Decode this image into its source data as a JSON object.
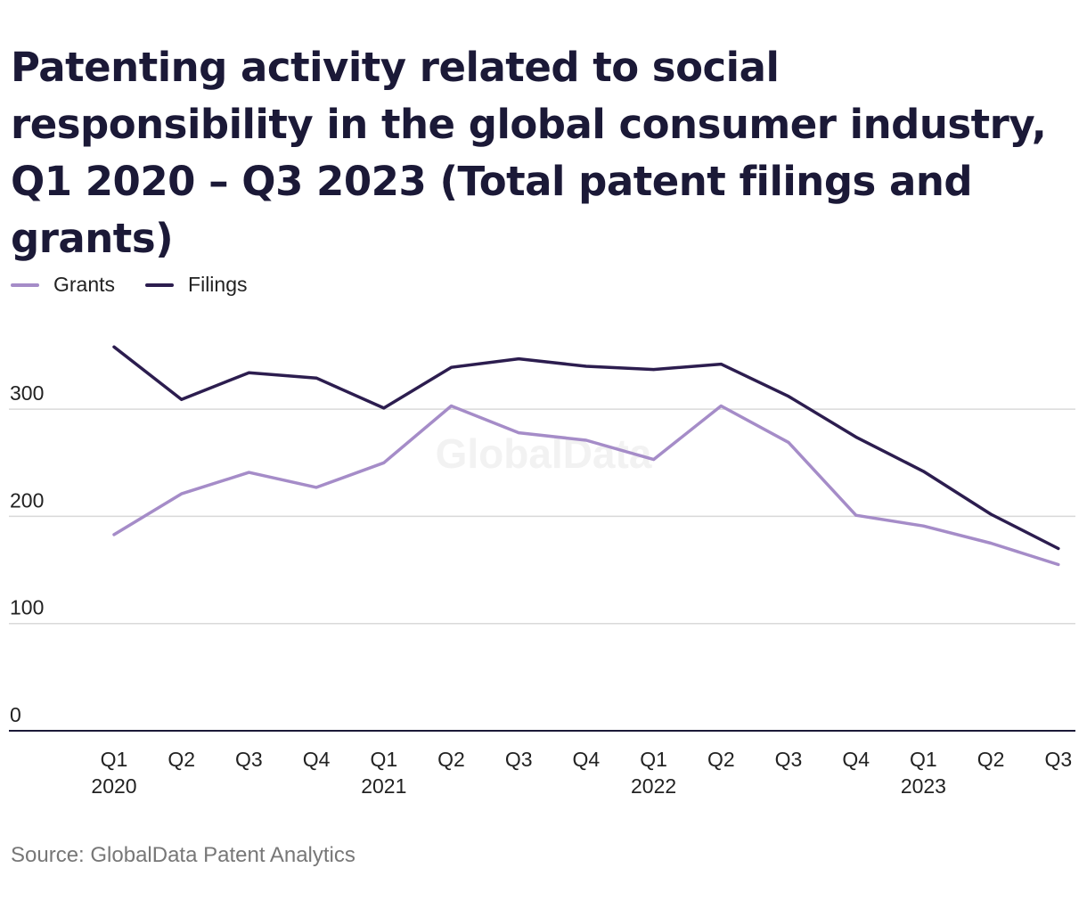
{
  "title": "Patenting activity related to social responsibility in the global consumer industry, Q1 2020 – Q3 2023 (Total patent filings and grants)",
  "source": "Source: GlobalData Patent Analytics",
  "watermark": "GlobalData",
  "chart_data": {
    "type": "line",
    "title": "Patenting activity related to social responsibility in the global consumer industry, Q1 2020 – Q3 2023 (Total patent filings and grants)",
    "categories": [
      "Q1 2020",
      "Q2",
      "Q3",
      "Q4",
      "Q1 2021",
      "Q2",
      "Q3",
      "Q4",
      "Q1 2022",
      "Q2",
      "Q3",
      "Q4",
      "Q1 2023",
      "Q2",
      "Q3"
    ],
    "x_ticks": [
      {
        "q": "Q1",
        "year": "2020"
      },
      {
        "q": "Q2",
        "year": ""
      },
      {
        "q": "Q3",
        "year": ""
      },
      {
        "q": "Q4",
        "year": ""
      },
      {
        "q": "Q1",
        "year": "2021"
      },
      {
        "q": "Q2",
        "year": ""
      },
      {
        "q": "Q3",
        "year": ""
      },
      {
        "q": "Q4",
        "year": ""
      },
      {
        "q": "Q1",
        "year": "2022"
      },
      {
        "q": "Q2",
        "year": ""
      },
      {
        "q": "Q3",
        "year": ""
      },
      {
        "q": "Q4",
        "year": ""
      },
      {
        "q": "Q1",
        "year": "2023"
      },
      {
        "q": "Q2",
        "year": ""
      },
      {
        "q": "Q3",
        "year": ""
      }
    ],
    "series": [
      {
        "name": "Grants",
        "color": "#a58cc8",
        "values": [
          183,
          221,
          241,
          227,
          250,
          303,
          278,
          271,
          253,
          303,
          269,
          201,
          191,
          175,
          155
        ]
      },
      {
        "name": "Filings",
        "color": "#2c1d4f",
        "values": [
          358,
          309,
          334,
          329,
          301,
          339,
          347,
          340,
          337,
          342,
          312,
          274,
          242,
          202,
          170
        ]
      }
    ],
    "yticks": [
      0,
      100,
      200,
      300
    ],
    "ylim": [
      0,
      360
    ],
    "xlabel": "",
    "ylabel": "",
    "grid": true,
    "legend_position": "top-left"
  }
}
